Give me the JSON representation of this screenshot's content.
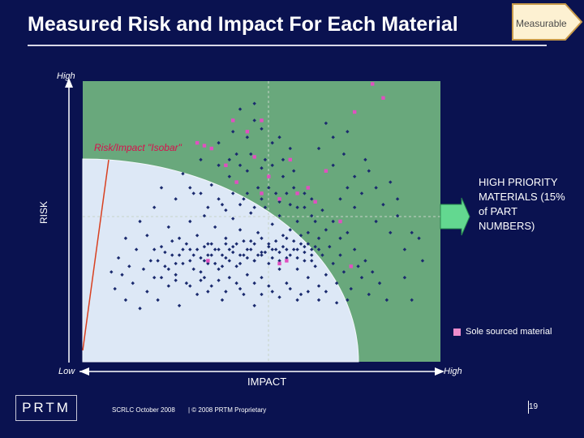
{
  "title": "Measured Risk and Impact For Each Material",
  "badge": "Measurable",
  "chart_data": {
    "type": "scatter",
    "y_axis": {
      "high_label": "High",
      "title": "RISK"
    },
    "x_axis": {
      "low_label": "Low",
      "high_label": "High",
      "title": "IMPACT"
    },
    "xlim": [
      0,
      1
    ],
    "ylim": [
      0,
      1
    ],
    "isobar_label": "Risk/Impact \"Isobar\"",
    "priority_label": "HIGH PRIORITY MATERIALS (15% of PART NUMBERS)",
    "legend": "Sole sourced material",
    "colors": {
      "priority_region": "#69a87c",
      "isobar_region": "#dde8f6",
      "point": "#1a2a6e",
      "sole_sourced": "#e050c0",
      "arrow": "#63d890",
      "isobar_line": "#d84020"
    },
    "points_regular": [
      [
        0.08,
        0.32
      ],
      [
        0.09,
        0.26
      ],
      [
        0.1,
        0.37
      ],
      [
        0.11,
        0.31
      ],
      [
        0.12,
        0.22
      ],
      [
        0.12,
        0.44
      ],
      [
        0.13,
        0.34
      ],
      [
        0.14,
        0.28
      ],
      [
        0.15,
        0.4
      ],
      [
        0.16,
        0.19
      ],
      [
        0.16,
        0.5
      ],
      [
        0.17,
        0.33
      ],
      [
        0.18,
        0.25
      ],
      [
        0.18,
        0.45
      ],
      [
        0.19,
        0.36
      ],
      [
        0.2,
        0.3
      ],
      [
        0.2,
        0.55
      ],
      [
        0.21,
        0.22
      ],
      [
        0.22,
        0.41
      ],
      [
        0.22,
        0.62
      ],
      [
        0.23,
        0.34
      ],
      [
        0.24,
        0.27
      ],
      [
        0.24,
        0.48
      ],
      [
        0.25,
        0.38
      ],
      [
        0.26,
        0.31
      ],
      [
        0.26,
        0.58
      ],
      [
        0.27,
        0.2
      ],
      [
        0.27,
        0.44
      ],
      [
        0.28,
        0.35
      ],
      [
        0.28,
        0.67
      ],
      [
        0.29,
        0.28
      ],
      [
        0.3,
        0.5
      ],
      [
        0.3,
        0.4
      ],
      [
        0.31,
        0.33
      ],
      [
        0.31,
        0.6
      ],
      [
        0.32,
        0.24
      ],
      [
        0.32,
        0.45
      ],
      [
        0.33,
        0.37
      ],
      [
        0.33,
        0.72
      ],
      [
        0.34,
        0.3
      ],
      [
        0.34,
        0.52
      ],
      [
        0.35,
        0.42
      ],
      [
        0.35,
        0.35
      ],
      [
        0.36,
        0.63
      ],
      [
        0.36,
        0.27
      ],
      [
        0.37,
        0.48
      ],
      [
        0.37,
        0.4
      ],
      [
        0.38,
        0.33
      ],
      [
        0.38,
        0.78
      ],
      [
        0.39,
        0.56
      ],
      [
        0.39,
        0.22
      ],
      [
        0.4,
        0.44
      ],
      [
        0.4,
        0.37
      ],
      [
        0.41,
        0.66
      ],
      [
        0.41,
        0.3
      ],
      [
        0.42,
        0.51
      ],
      [
        0.42,
        0.41
      ],
      [
        0.43,
        0.34
      ],
      [
        0.43,
        0.74
      ],
      [
        0.44,
        0.47
      ],
      [
        0.44,
        0.26
      ],
      [
        0.45,
        0.58
      ],
      [
        0.45,
        0.38
      ],
      [
        0.46,
        0.31
      ],
      [
        0.46,
        0.68
      ],
      [
        0.47,
        0.43
      ],
      [
        0.47,
        0.53
      ],
      [
        0.48,
        0.36
      ],
      [
        0.48,
        0.2
      ],
      [
        0.49,
        0.62
      ],
      [
        0.49,
        0.46
      ],
      [
        0.5,
        0.39
      ],
      [
        0.5,
        0.3
      ],
      [
        0.51,
        0.55
      ],
      [
        0.51,
        0.72
      ],
      [
        0.52,
        0.42
      ],
      [
        0.52,
        0.35
      ],
      [
        0.53,
        0.49
      ],
      [
        0.53,
        0.25
      ],
      [
        0.54,
        0.6
      ],
      [
        0.54,
        0.4
      ],
      [
        0.55,
        0.33
      ],
      [
        0.55,
        0.52
      ],
      [
        0.56,
        0.45
      ],
      [
        0.56,
        0.66
      ],
      [
        0.57,
        0.37
      ],
      [
        0.57,
        0.28
      ],
      [
        0.58,
        0.56
      ],
      [
        0.58,
        0.47
      ],
      [
        0.59,
        0.4
      ],
      [
        0.59,
        0.62
      ],
      [
        0.6,
        0.33
      ],
      [
        0.6,
        0.5
      ],
      [
        0.61,
        0.42
      ],
      [
        0.61,
        0.24
      ],
      [
        0.62,
        0.55
      ],
      [
        0.62,
        0.36
      ],
      [
        0.63,
        0.46
      ],
      [
        0.63,
        0.3
      ],
      [
        0.64,
        0.58
      ],
      [
        0.64,
        0.4
      ],
      [
        0.65,
        0.5
      ],
      [
        0.65,
        0.34
      ],
      [
        0.66,
        0.44
      ],
      [
        0.66,
        0.27
      ],
      [
        0.67,
        0.54
      ],
      [
        0.67,
        0.38
      ],
      [
        0.68,
        0.47
      ],
      [
        0.68,
        0.31
      ],
      [
        0.69,
        0.41
      ],
      [
        0.7,
        0.35
      ],
      [
        0.7,
        0.5
      ],
      [
        0.71,
        0.28
      ],
      [
        0.72,
        0.44
      ],
      [
        0.72,
        0.38
      ],
      [
        0.73,
        0.32
      ],
      [
        0.74,
        0.46
      ],
      [
        0.75,
        0.26
      ],
      [
        0.76,
        0.4
      ],
      [
        0.77,
        0.34
      ],
      [
        0.78,
        0.3
      ],
      [
        0.79,
        0.36
      ],
      [
        0.8,
        0.24
      ],
      [
        0.81,
        0.32
      ],
      [
        0.83,
        0.28
      ],
      [
        0.85,
        0.22
      ],
      [
        0.2,
        0.4
      ],
      [
        0.22,
        0.3
      ],
      [
        0.25,
        0.43
      ],
      [
        0.27,
        0.38
      ],
      [
        0.29,
        0.42
      ],
      [
        0.3,
        0.36
      ],
      [
        0.32,
        0.4
      ],
      [
        0.33,
        0.32
      ],
      [
        0.34,
        0.41
      ],
      [
        0.35,
        0.38
      ],
      [
        0.36,
        0.42
      ],
      [
        0.37,
        0.35
      ],
      [
        0.38,
        0.4
      ],
      [
        0.39,
        0.38
      ],
      [
        0.4,
        0.42
      ],
      [
        0.41,
        0.36
      ],
      [
        0.42,
        0.39
      ],
      [
        0.43,
        0.42
      ],
      [
        0.44,
        0.38
      ],
      [
        0.45,
        0.43
      ],
      [
        0.46,
        0.37
      ],
      [
        0.47,
        0.4
      ],
      [
        0.48,
        0.42
      ],
      [
        0.49,
        0.38
      ],
      [
        0.5,
        0.44
      ],
      [
        0.51,
        0.39
      ],
      [
        0.52,
        0.41
      ],
      [
        0.53,
        0.37
      ],
      [
        0.54,
        0.43
      ],
      [
        0.55,
        0.39
      ],
      [
        0.56,
        0.41
      ],
      [
        0.57,
        0.44
      ],
      [
        0.58,
        0.38
      ],
      [
        0.59,
        0.43
      ],
      [
        0.6,
        0.4
      ],
      [
        0.61,
        0.45
      ],
      [
        0.62,
        0.39
      ],
      [
        0.63,
        0.42
      ],
      [
        0.64,
        0.36
      ],
      [
        0.65,
        0.41
      ],
      [
        0.21,
        0.36
      ],
      [
        0.23,
        0.39
      ],
      [
        0.26,
        0.35
      ],
      [
        0.28,
        0.4
      ],
      [
        0.31,
        0.38
      ],
      [
        0.34,
        0.36
      ],
      [
        0.36,
        0.38
      ],
      [
        0.39,
        0.34
      ],
      [
        0.41,
        0.4
      ],
      [
        0.44,
        0.35
      ],
      [
        0.46,
        0.4
      ],
      [
        0.48,
        0.36
      ],
      [
        0.5,
        0.38
      ],
      [
        0.53,
        0.4
      ],
      [
        0.55,
        0.36
      ],
      [
        0.57,
        0.4
      ],
      [
        0.6,
        0.37
      ],
      [
        0.62,
        0.41
      ],
      [
        0.64,
        0.38
      ],
      [
        0.66,
        0.4
      ],
      [
        0.24,
        0.33
      ],
      [
        0.26,
        0.29
      ],
      [
        0.3,
        0.27
      ],
      [
        0.33,
        0.29
      ],
      [
        0.35,
        0.25
      ],
      [
        0.38,
        0.29
      ],
      [
        0.4,
        0.25
      ],
      [
        0.43,
        0.28
      ],
      [
        0.45,
        0.24
      ],
      [
        0.48,
        0.28
      ],
      [
        0.5,
        0.24
      ],
      [
        0.52,
        0.27
      ],
      [
        0.55,
        0.23
      ],
      [
        0.58,
        0.26
      ],
      [
        0.6,
        0.22
      ],
      [
        0.63,
        0.25
      ],
      [
        0.66,
        0.22
      ],
      [
        0.68,
        0.25
      ],
      [
        0.71,
        0.21
      ],
      [
        0.74,
        0.22
      ],
      [
        0.3,
        0.62
      ],
      [
        0.33,
        0.6
      ],
      [
        0.35,
        0.55
      ],
      [
        0.38,
        0.58
      ],
      [
        0.4,
        0.54
      ],
      [
        0.42,
        0.6
      ],
      [
        0.44,
        0.56
      ],
      [
        0.46,
        0.6
      ],
      [
        0.48,
        0.55
      ],
      [
        0.5,
        0.58
      ],
      [
        0.52,
        0.62
      ],
      [
        0.55,
        0.57
      ],
      [
        0.57,
        0.6
      ],
      [
        0.6,
        0.55
      ],
      [
        0.62,
        0.6
      ],
      [
        0.64,
        0.52
      ],
      [
        0.38,
        0.7
      ],
      [
        0.41,
        0.72
      ],
      [
        0.44,
        0.7
      ],
      [
        0.47,
        0.74
      ],
      [
        0.5,
        0.69
      ],
      [
        0.53,
        0.7
      ],
      [
        0.56,
        0.72
      ],
      [
        0.59,
        0.68
      ],
      [
        0.42,
        0.82
      ],
      [
        0.46,
        0.8
      ],
      [
        0.48,
        0.86
      ],
      [
        0.5,
        0.83
      ],
      [
        0.53,
        0.78
      ],
      [
        0.55,
        0.8
      ],
      [
        0.58,
        0.76
      ],
      [
        0.44,
        0.9
      ],
      [
        0.48,
        0.92
      ],
      [
        0.72,
        0.58
      ],
      [
        0.74,
        0.62
      ],
      [
        0.76,
        0.55
      ],
      [
        0.78,
        0.6
      ],
      [
        0.8,
        0.68
      ],
      [
        0.82,
        0.5
      ],
      [
        0.84,
        0.56
      ],
      [
        0.86,
        0.46
      ],
      [
        0.88,
        0.52
      ],
      [
        0.9,
        0.4
      ],
      [
        0.92,
        0.46
      ],
      [
        0.7,
        0.7
      ],
      [
        0.73,
        0.74
      ],
      [
        0.76,
        0.66
      ],
      [
        0.79,
        0.72
      ],
      [
        0.82,
        0.62
      ],
      [
        0.86,
        0.64
      ],
      [
        0.88,
        0.58
      ],
      [
        0.9,
        0.3
      ],
      [
        0.92,
        0.22
      ],
      [
        0.7,
        0.8
      ],
      [
        0.74,
        0.82
      ],
      [
        0.66,
        0.76
      ],
      [
        0.68,
        0.85
      ],
      [
        0.95,
        0.36
      ],
      [
        0.94,
        0.44
      ]
    ],
    "points_sole_sourced": [
      [
        0.32,
        0.78
      ],
      [
        0.34,
        0.77
      ],
      [
        0.36,
        0.76
      ],
      [
        0.4,
        0.7
      ],
      [
        0.43,
        0.64
      ],
      [
        0.46,
        0.82
      ],
      [
        0.48,
        0.73
      ],
      [
        0.5,
        0.6
      ],
      [
        0.52,
        0.66
      ],
      [
        0.55,
        0.58
      ],
      [
        0.58,
        0.72
      ],
      [
        0.6,
        0.6
      ],
      [
        0.63,
        0.62
      ],
      [
        0.65,
        0.57
      ],
      [
        0.68,
        0.68
      ],
      [
        0.72,
        0.5
      ],
      [
        0.75,
        0.34
      ],
      [
        0.76,
        0.89
      ],
      [
        0.81,
        0.99
      ],
      [
        0.84,
        0.94
      ],
      [
        0.35,
        0.36
      ],
      [
        0.55,
        0.35
      ],
      [
        0.57,
        0.36
      ],
      [
        0.5,
        0.86
      ],
      [
        0.42,
        0.86
      ]
    ]
  },
  "footer": {
    "logo": "PRTM",
    "event": "SCRLC October 2008",
    "proprietary": "| © 2008 PRTM Proprietary",
    "page": "19"
  }
}
